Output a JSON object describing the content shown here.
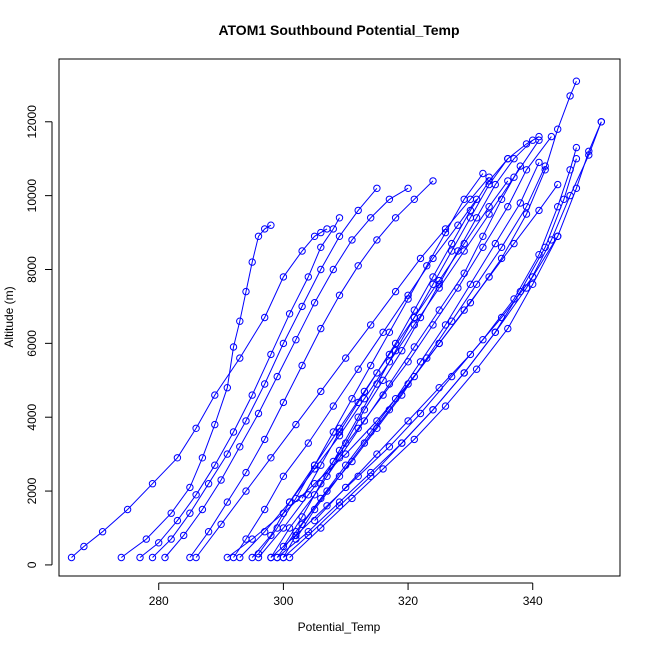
{
  "chart_data": {
    "type": "line",
    "title": "ATOM1 Southbound Potential_Temp",
    "xlabel": "Potential_Temp",
    "ylabel": "Altitude (m)",
    "xlim": [
      264,
      354
    ],
    "ylim": [
      -300,
      13700
    ],
    "x_ticks": [
      280,
      300,
      320,
      340
    ],
    "y_ticks": [
      0,
      2000,
      4000,
      6000,
      8000,
      10000,
      12000
    ],
    "grid": false,
    "series_color": "#0000ff",
    "marker": "open-circle",
    "series": [
      {
        "x": [
          266,
          268,
          271,
          275,
          279,
          283,
          286,
          289,
          293,
          297,
          300,
          303,
          305,
          306,
          307
        ],
        "y": [
          200,
          500,
          900,
          1500,
          2200,
          2900,
          3700,
          4600,
          5600,
          6700,
          7800,
          8500,
          8900,
          9000,
          9100
        ]
      },
      {
        "x": [
          274,
          278,
          282,
          285,
          287,
          289,
          291,
          292,
          293,
          294,
          295,
          296,
          297,
          298
        ],
        "y": [
          200,
          700,
          1400,
          2100,
          2900,
          3800,
          4800,
          5900,
          6600,
          7400,
          8200,
          8900,
          9100,
          9200
        ]
      },
      {
        "x": [
          277,
          280,
          283,
          286,
          289,
          292,
          295,
          298,
          301,
          304,
          306,
          308,
          309
        ],
        "y": [
          200,
          600,
          1200,
          1900,
          2700,
          3600,
          4600,
          5700,
          6800,
          7800,
          8600,
          9100,
          9400
        ]
      },
      {
        "x": [
          279,
          282,
          285,
          288,
          291,
          294,
          297,
          300,
          303,
          306,
          309,
          312,
          315
        ],
        "y": [
          200,
          700,
          1400,
          2200,
          3000,
          3900,
          4900,
          6000,
          7000,
          8000,
          8900,
          9600,
          10200
        ]
      },
      {
        "x": [
          281,
          284,
          287,
          290,
          293,
          296,
          299,
          302,
          305,
          308,
          311,
          314,
          317,
          320
        ],
        "y": [
          200,
          800,
          1500,
          2300,
          3200,
          4100,
          5100,
          6100,
          7100,
          8000,
          8800,
          9400,
          9900,
          10200
        ]
      },
      {
        "x": [
          285,
          288,
          291,
          294,
          297,
          300,
          303,
          306,
          309,
          312,
          315,
          318,
          321,
          324
        ],
        "y": [
          200,
          900,
          1700,
          2500,
          3400,
          4400,
          5400,
          6400,
          7300,
          8100,
          8800,
          9400,
          9900,
          10400
        ]
      },
      {
        "x": [
          292,
          294,
          297,
          300,
          304,
          308,
          312,
          316,
          320,
          324,
          328,
          331
        ],
        "y": [
          200,
          700,
          1500,
          2400,
          3300,
          4300,
          5300,
          6300,
          7300,
          8300,
          9200,
          9900
        ]
      },
      {
        "x": [
          295,
          298,
          301,
          305,
          309,
          313,
          317,
          321,
          325,
          329,
          333,
          336
        ],
        "y": [
          200,
          800,
          1700,
          2700,
          3700,
          4700,
          5700,
          6700,
          7700,
          8700,
          9700,
          10400
        ]
      },
      {
        "x": [
          298,
          301,
          305,
          309,
          313,
          317,
          321,
          325,
          329,
          332,
          335,
          338
        ],
        "y": [
          200,
          1000,
          1900,
          2900,
          3900,
          4900,
          5900,
          6900,
          7900,
          8900,
          9900,
          10800
        ]
      },
      {
        "x": [
          299,
          302,
          306,
          310,
          314,
          318,
          322,
          326,
          330,
          334,
          338,
          341
        ],
        "y": [
          200,
          900,
          1800,
          2700,
          3600,
          4500,
          5500,
          6500,
          7600,
          8700,
          9800,
          10900
        ]
      },
      {
        "x": [
          300,
          303,
          307,
          311,
          315,
          319,
          323,
          327,
          331,
          335,
          339,
          342
        ],
        "y": [
          200,
          1100,
          2000,
          2800,
          3700,
          4600,
          5600,
          6600,
          7600,
          8600,
          9700,
          10800
        ]
      },
      {
        "x": [
          300,
          304,
          309,
          314,
          319,
          324,
          329,
          334,
          338,
          342,
          345,
          347
        ],
        "y": [
          200,
          800,
          1600,
          2400,
          3300,
          4200,
          5200,
          6300,
          7400,
          8600,
          9900,
          11000
        ]
      },
      {
        "x": [
          301,
          306,
          311,
          316,
          321,
          326,
          331,
          336,
          340,
          344,
          347,
          349,
          351
        ],
        "y": [
          200,
          1000,
          1800,
          2600,
          3400,
          4300,
          5300,
          6400,
          7600,
          8900,
          10200,
          11200,
          12000
        ]
      },
      {
        "x": [
          299,
          304,
          309,
          314,
          319,
          324,
          329,
          334,
          339,
          343,
          346,
          349,
          351
        ],
        "y": [
          200,
          900,
          1700,
          2500,
          3300,
          4200,
          5200,
          6300,
          7500,
          8800,
          10000,
          11100,
          12000
        ]
      },
      {
        "x": [
          298,
          302,
          307,
          312,
          317,
          322,
          327,
          332,
          337,
          341,
          344,
          346,
          347
        ],
        "y": [
          200,
          800,
          1600,
          2400,
          3200,
          4100,
          5100,
          6100,
          7200,
          8400,
          9700,
          10700,
          11300
        ]
      },
      {
        "x": [
          291,
          295,
          300,
          305,
          310,
          315,
          320,
          325,
          330,
          335,
          339,
          342,
          344,
          346,
          347
        ],
        "y": [
          200,
          700,
          1400,
          2200,
          3000,
          3900,
          4900,
          6000,
          7100,
          8300,
          9500,
          10700,
          11800,
          12700,
          13100
        ]
      },
      {
        "x": [
          293,
          297,
          301,
          305,
          309,
          313,
          317,
          321,
          325,
          329,
          333,
          337,
          341
        ],
        "y": [
          200,
          900,
          1700,
          2600,
          3500,
          4500,
          5500,
          6500,
          7500,
          8500,
          9500,
          10500,
          11500
        ]
      },
      {
        "x": [
          296,
          300,
          304,
          308,
          312,
          316,
          320,
          324,
          328,
          332,
          336,
          339,
          343
        ],
        "y": [
          200,
          1000,
          1900,
          2800,
          3700,
          4600,
          5500,
          6500,
          7500,
          8600,
          9700,
          10700,
          11600
        ]
      },
      {
        "x": [
          303,
          306,
          309,
          312,
          315,
          318,
          321,
          324,
          327,
          330,
          333,
          336,
          339,
          341
        ],
        "y": [
          1800,
          2700,
          3600,
          4400,
          5200,
          6000,
          6900,
          7800,
          8700,
          9600,
          10400,
          11000,
          11400,
          11600
        ]
      },
      {
        "x": [
          307,
          310,
          313,
          316,
          319,
          322,
          325,
          328,
          331,
          334,
          337,
          340
        ],
        "y": [
          2400,
          3300,
          4200,
          5000,
          5800,
          6700,
          7600,
          8500,
          9400,
          10300,
          11000,
          11500
        ]
      },
      {
        "x": [
          286,
          290,
          294,
          298,
          302,
          306,
          310,
          314,
          318,
          322,
          326,
          330,
          333
        ],
        "y": [
          200,
          1100,
          2000,
          2900,
          3800,
          4700,
          5600,
          6500,
          7400,
          8300,
          9100,
          9900,
          10500
        ]
      },
      {
        "x": [
          296,
          299,
          302,
          305,
          308,
          311,
          314,
          317,
          320,
          323,
          326,
          329,
          332
        ],
        "y": [
          300,
          1000,
          1800,
          2700,
          3600,
          4500,
          5400,
          6300,
          7200,
          8100,
          9000,
          9900,
          10600
        ]
      },
      {
        "x": [
          300,
          303,
          306,
          309,
          312,
          315,
          318,
          321,
          324,
          327,
          330,
          333,
          336
        ],
        "y": [
          500,
          1300,
          2200,
          3100,
          4000,
          4900,
          5800,
          6700,
          7600,
          8500,
          9400,
          10300,
          11000
        ]
      },
      {
        "x": [
          302,
          305,
          309,
          313,
          317,
          321,
          325,
          329,
          333,
          337,
          341,
          344
        ],
        "y": [
          700,
          1500,
          2400,
          3300,
          4200,
          5100,
          6000,
          6900,
          7800,
          8700,
          9600,
          10300
        ]
      },
      {
        "x": [
          305,
          310,
          315,
          320,
          325,
          330,
          335,
          340,
          344
        ],
        "y": [
          1200,
          2100,
          3000,
          3900,
          4800,
          5700,
          6700,
          7800,
          8900
        ]
      }
    ]
  }
}
